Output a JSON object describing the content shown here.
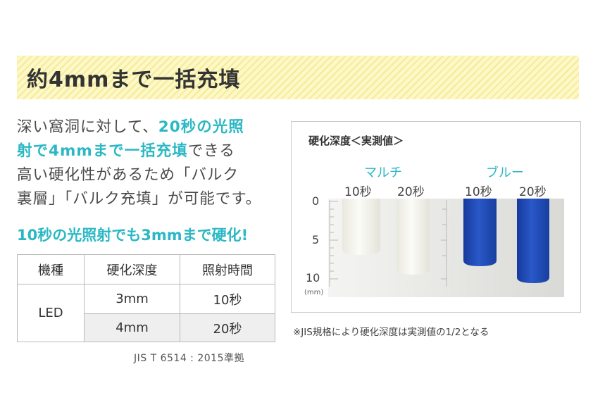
{
  "title": "約4mmまで一括充填",
  "body": {
    "line1": "深い窩洞に対して、",
    "line1_hl": "20秒の光照",
    "line2_hl": "射で4mmまで一括充填",
    "line2": "できる",
    "line3": "高い硬化性があるため「バルク",
    "line4": "裏層」「バルク充填」が可能です。"
  },
  "subhead": "10秒の光照射でも3mmまで硬化!",
  "table": {
    "headers": [
      "機種",
      "硬化深度",
      "照射時間"
    ],
    "model": "LED",
    "rows": [
      {
        "depth": "3mm",
        "time": "10秒"
      },
      {
        "depth": "4mm",
        "time": "20秒"
      }
    ]
  },
  "standard": "JIS T 6514 : 2015準拠",
  "figure": {
    "title": "硬化深度＜実測値＞",
    "groups": [
      {
        "name": "マルチ",
        "labels": [
          "10秒",
          "20秒"
        ]
      },
      {
        "name": "ブルー",
        "labels": [
          "10秒",
          "20秒"
        ]
      }
    ],
    "axis_ticks": [
      "0",
      "5",
      "10"
    ],
    "axis_unit": "(mm)",
    "colors": {
      "multi": "#f2f1ea",
      "blue": "#1e47b8",
      "accent": "#2bb8c4"
    }
  },
  "note": "※JIS規格により硬化深度は実測値の1/2となる"
}
